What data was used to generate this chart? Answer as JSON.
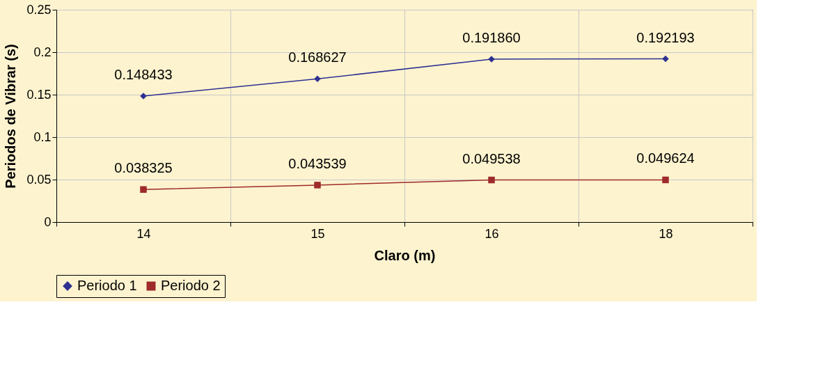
{
  "chart_data": {
    "type": "line",
    "xlabel": "Claro (m)",
    "ylabel": "Periodos de Vibrar (s)",
    "categories": [
      "14",
      "15",
      "16",
      "18"
    ],
    "series": [
      {
        "name": "Periodo 1",
        "color": "#2e3192",
        "marker": "diamond",
        "values": [
          0.148433,
          0.168627,
          0.19186,
          0.192193
        ],
        "value_labels": [
          "0.148433",
          "0.168627",
          "0.191860",
          "0.192193"
        ]
      },
      {
        "name": "Periodo 2",
        "color": "#9e2a2b",
        "marker": "square",
        "values": [
          0.038325,
          0.043539,
          0.049538,
          0.049624
        ],
        "value_labels": [
          "0.038325",
          "0.043539",
          "0.049538",
          "0.049624"
        ]
      }
    ],
    "ylim": [
      0,
      0.25
    ],
    "yticks": [
      0,
      0.05,
      0.1,
      0.15,
      0.2,
      0.25
    ],
    "grid": true,
    "legend": "bottom",
    "line_style": "solid"
  }
}
